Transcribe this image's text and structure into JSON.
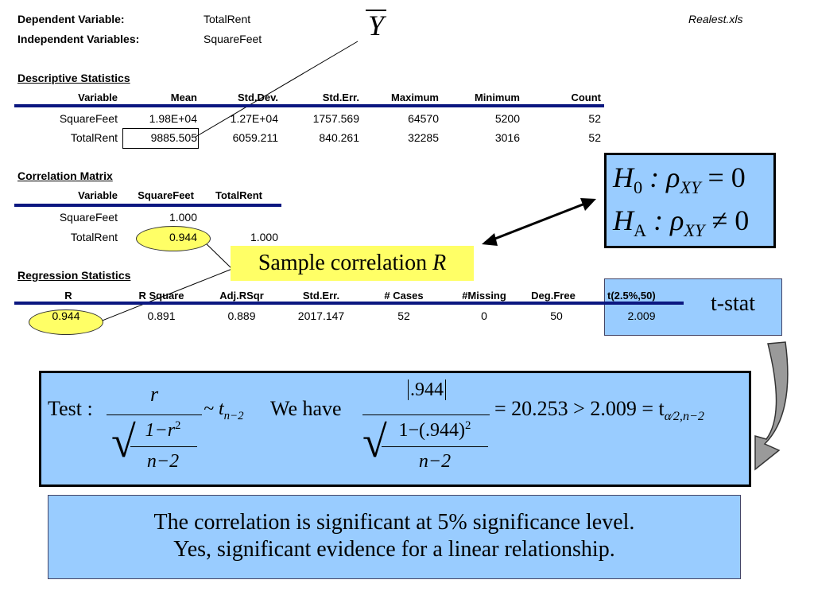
{
  "header": {
    "dependent_label": "Dependent Variable:",
    "dependent_value": "TotalRent",
    "independent_label": "Independent Variables:",
    "independent_value": "SquareFeet",
    "file_name": "Realest.xls",
    "ybar_symbol": "Y"
  },
  "descriptive": {
    "title": "Descriptive Statistics",
    "columns": [
      "Variable",
      "Mean",
      "Std.Dev.",
      "Std.Err.",
      "Maximum",
      "Minimum",
      "Count"
    ],
    "rows": [
      [
        "SquareFeet",
        "1.98E+04",
        "1.27E+04",
        "1757.569",
        "64570",
        "5200",
        "52"
      ],
      [
        "TotalRent",
        "9885.505",
        "6059.211",
        "840.261",
        "32285",
        "3016",
        "52"
      ]
    ]
  },
  "correlation": {
    "title": "Correlation Matrix",
    "columns": [
      "Variable",
      "SquareFeet",
      "TotalRent"
    ],
    "rows": [
      [
        "SquareFeet",
        "1.000",
        ""
      ],
      [
        "TotalRent",
        "0.944",
        "1.000"
      ]
    ]
  },
  "callouts": {
    "sample_correlation": "Sample correlation ",
    "sample_correlation_var": "R",
    "tstat_label": "t-stat"
  },
  "hypotheses": {
    "h0_left": "H",
    "h0_sub": "0",
    "h0_rel": " :  ρ",
    "h0_xy": "XY",
    "h0_right": " = 0",
    "ha_left": "H",
    "ha_sub": "A",
    "ha_rel": " :  ρ",
    "ha_xy": "XY",
    "ha_right": " ≠ 0"
  },
  "regression": {
    "title": "Regression Statistics",
    "columns": [
      "R",
      "R Square",
      "Adj.RSqr",
      "Std.Err.",
      "# Cases",
      "#Missing",
      "Deg.Free",
      "t(2.5%,50)"
    ],
    "values": [
      "0.944",
      "0.891",
      "0.889",
      "2017.147",
      "52",
      "0",
      "50",
      "2.009"
    ]
  },
  "formula": {
    "test_label": "Test : ",
    "r": "r",
    "one_minus_r2": "1−r",
    "exp2": "2",
    "n_minus_2": "n−2",
    "tilde_t": "~ t",
    "t_sub": "n−2",
    "we_have": "We have",
    "abs_944": ".944",
    "one_minus_944": "1−(.944)",
    "result": "= 20.253 > 2.009 = t",
    "t_alpha_sub": "α⁄2,n−2"
  },
  "conclusion": {
    "line1": "The correlation is significant at 5% significance level.",
    "line2": "Yes, significant evidence for a linear relationship."
  }
}
